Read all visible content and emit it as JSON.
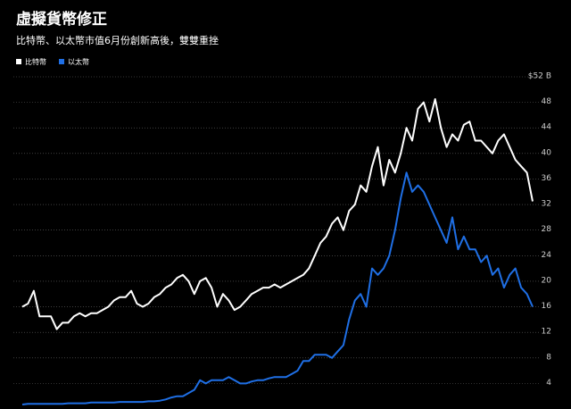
{
  "chart_data": {
    "type": "line",
    "title": "虛擬貨幣修正",
    "subtitle": "比特幣、以太幣市值6月份創新高後，雙雙重挫",
    "ylim": [
      0,
      52
    ],
    "yticks": [
      4,
      8,
      12,
      16,
      20,
      24,
      28,
      32,
      36,
      40,
      44,
      48,
      {
        "value": 52,
        "label": "$52 B"
      }
    ],
    "grid": true,
    "legend": "top-left",
    "series": [
      {
        "name": "比特幣",
        "color": "#ffffff",
        "values": [
          16,
          16.5,
          18.5,
          14.5,
          14.5,
          14.5,
          12.5,
          13.5,
          13.5,
          14.5,
          15,
          14.5,
          15,
          15,
          15.5,
          16,
          17,
          17.5,
          17.5,
          18.5,
          16.5,
          16,
          16.5,
          17.5,
          18,
          19,
          19.5,
          20.5,
          21,
          20,
          18,
          20,
          20.5,
          19,
          16,
          18,
          17,
          15.5,
          16,
          17,
          18,
          18.5,
          19,
          19,
          19.5,
          19,
          19.5,
          20,
          20.5,
          21,
          22,
          24,
          26,
          27,
          29,
          30,
          28,
          31,
          32,
          35,
          34,
          38,
          41,
          35,
          39,
          37,
          40,
          44,
          42,
          47,
          48,
          45,
          48.5,
          44,
          41,
          43,
          42,
          44.5,
          45,
          42,
          42,
          41,
          40,
          42,
          43,
          41,
          39,
          38,
          37,
          32.5
        ]
      },
      {
        "name": "以太幣",
        "color": "#1f6fe5",
        "values": [
          0.7,
          0.8,
          0.8,
          0.8,
          0.8,
          0.8,
          0.8,
          0.8,
          0.9,
          0.9,
          0.9,
          0.9,
          1,
          1,
          1,
          1,
          1,
          1.1,
          1.1,
          1.1,
          1.1,
          1.1,
          1.2,
          1.2,
          1.3,
          1.5,
          1.8,
          2,
          2,
          2.5,
          3,
          4.5,
          4,
          4.5,
          4.5,
          4.5,
          5,
          4.5,
          4,
          4,
          4.3,
          4.5,
          4.5,
          4.8,
          5,
          5,
          5,
          5.5,
          6,
          7.5,
          7.5,
          8.5,
          8.5,
          8.5,
          8,
          9,
          10,
          14,
          17,
          18,
          16,
          22,
          21,
          22,
          24,
          28,
          33,
          37,
          34,
          35,
          34,
          32,
          30,
          28,
          26,
          30,
          25,
          27,
          25,
          25,
          23,
          24,
          21,
          22,
          19,
          21,
          22,
          19,
          18,
          16
        ]
      }
    ]
  }
}
